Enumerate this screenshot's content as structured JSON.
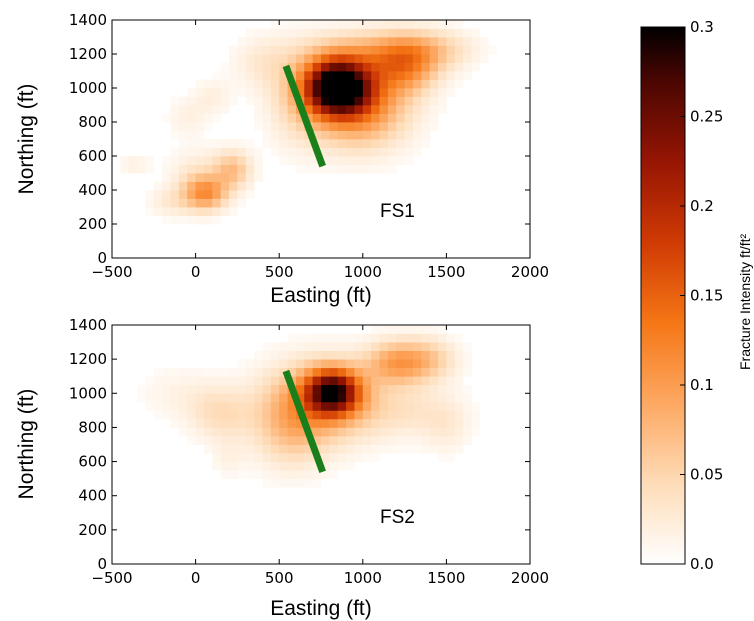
{
  "chart_data": [
    {
      "type": "heatmap",
      "panel_label": "FS1",
      "xlabel": "Easting (ft)",
      "ylabel": "Northing (ft)",
      "xlim": [
        -500,
        2000
      ],
      "ylim": [
        0,
        1400
      ],
      "xticks": [
        -500,
        0,
        500,
        1000,
        1500,
        2000
      ],
      "yticks": [
        0,
        200,
        400,
        600,
        800,
        1000,
        1200,
        1400
      ],
      "cell_size_ft": 50,
      "blobs": [
        {
          "x": 850,
          "y": 1010,
          "sx": 130,
          "sy": 110,
          "v": 0.32
        },
        {
          "x": 980,
          "y": 900,
          "sx": 200,
          "sy": 170,
          "v": 0.12
        },
        {
          "x": 1250,
          "y": 1130,
          "sx": 140,
          "sy": 110,
          "v": 0.1
        },
        {
          "x": 1420,
          "y": 1230,
          "sx": 180,
          "sy": 80,
          "v": 0.04
        },
        {
          "x": 1050,
          "y": 1220,
          "sx": 260,
          "sy": 90,
          "v": 0.05
        },
        {
          "x": 620,
          "y": 950,
          "sx": 140,
          "sy": 200,
          "v": 0.04
        },
        {
          "x": 400,
          "y": 1150,
          "sx": 130,
          "sy": 110,
          "v": 0.025
        },
        {
          "x": 60,
          "y": 380,
          "sx": 90,
          "sy": 70,
          "v": 0.1
        },
        {
          "x": 220,
          "y": 520,
          "sx": 80,
          "sy": 80,
          "v": 0.07
        },
        {
          "x": 0,
          "y": 480,
          "sx": 110,
          "sy": 110,
          "v": 0.03
        },
        {
          "x": -150,
          "y": 330,
          "sx": 90,
          "sy": 60,
          "v": 0.025
        },
        {
          "x": -370,
          "y": 550,
          "sx": 70,
          "sy": 50,
          "v": 0.018
        },
        {
          "x": -50,
          "y": 830,
          "sx": 90,
          "sy": 80,
          "v": 0.018
        },
        {
          "x": 100,
          "y": 950,
          "sx": 80,
          "sy": 70,
          "v": 0.02
        }
      ],
      "fault_line": {
        "x": [
          540,
          760
        ],
        "y": [
          1130,
          540
        ],
        "color": "#1a7f1a"
      }
    },
    {
      "type": "heatmap",
      "panel_label": "FS2",
      "xlabel": "Easting (ft)",
      "ylabel": "Northing (ft)",
      "xlim": [
        -500,
        2000
      ],
      "ylim": [
        0,
        1400
      ],
      "xticks": [
        -500,
        0,
        500,
        1000,
        1500,
        2000
      ],
      "yticks": [
        0,
        200,
        400,
        600,
        800,
        1000,
        1200,
        1400
      ],
      "cell_size_ft": 50,
      "blobs": [
        {
          "x": 820,
          "y": 1010,
          "sx": 110,
          "sy": 90,
          "v": 0.24
        },
        {
          "x": 750,
          "y": 950,
          "sx": 230,
          "sy": 170,
          "v": 0.09
        },
        {
          "x": 1200,
          "y": 1180,
          "sx": 130,
          "sy": 90,
          "v": 0.09
        },
        {
          "x": 1400,
          "y": 1200,
          "sx": 120,
          "sy": 90,
          "v": 0.05
        },
        {
          "x": 1250,
          "y": 900,
          "sx": 220,
          "sy": 110,
          "v": 0.03
        },
        {
          "x": 560,
          "y": 800,
          "sx": 150,
          "sy": 170,
          "v": 0.05
        },
        {
          "x": 150,
          "y": 880,
          "sx": 130,
          "sy": 110,
          "v": 0.04
        },
        {
          "x": -100,
          "y": 1000,
          "sx": 170,
          "sy": 110,
          "v": 0.015
        },
        {
          "x": 200,
          "y": 620,
          "sx": 70,
          "sy": 80,
          "v": 0.015
        },
        {
          "x": 1500,
          "y": 800,
          "sx": 100,
          "sy": 110,
          "v": 0.02
        }
      ],
      "fault_line": {
        "x": [
          540,
          760
        ],
        "y": [
          1130,
          540
        ],
        "color": "#1a7f1a"
      }
    }
  ],
  "colorbar": {
    "label": "Fracture Intensity ft/ft²",
    "ticks": [
      "0.0",
      "0.05",
      "0.1",
      "0.15",
      "0.2",
      "0.25",
      "0.3"
    ],
    "tick_values": [
      0.0,
      0.05,
      0.1,
      0.15,
      0.2,
      0.25,
      0.3
    ],
    "range": [
      0.0,
      0.3
    ],
    "colormap": "gist_heat_r"
  }
}
